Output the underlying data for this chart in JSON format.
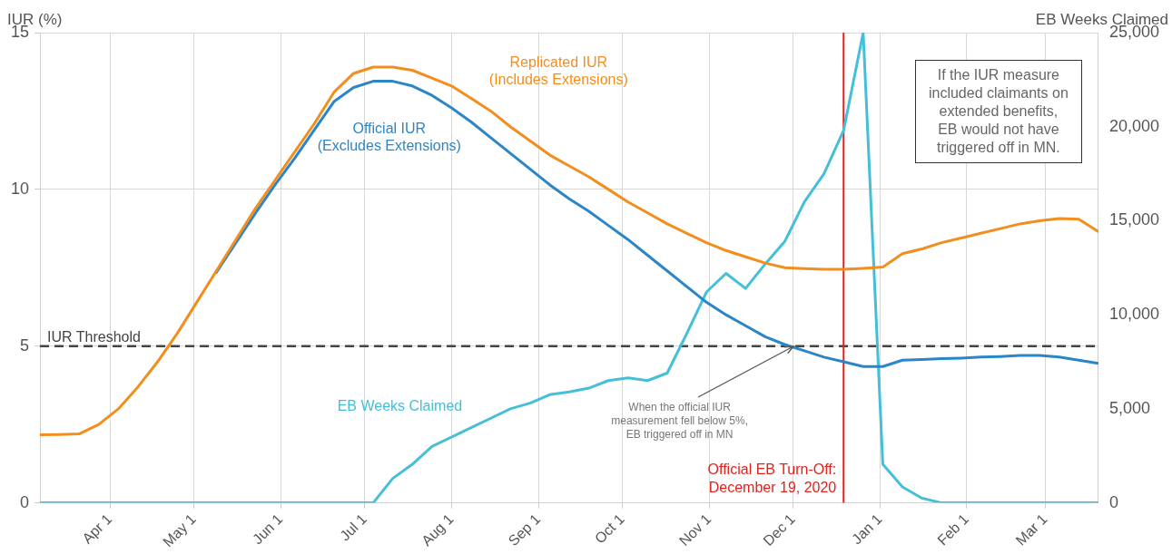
{
  "chart_data": {
    "type": "line",
    "x": [
      "2020-03-07",
      "2020-03-14",
      "2020-03-21",
      "2020-03-28",
      "2020-04-04",
      "2020-04-11",
      "2020-04-18",
      "2020-04-25",
      "2020-05-02",
      "2020-05-09",
      "2020-05-16",
      "2020-05-23",
      "2020-05-30",
      "2020-06-06",
      "2020-06-13",
      "2020-06-20",
      "2020-06-27",
      "2020-07-04",
      "2020-07-11",
      "2020-07-18",
      "2020-07-25",
      "2020-08-01",
      "2020-08-08",
      "2020-08-15",
      "2020-08-22",
      "2020-08-29",
      "2020-09-05",
      "2020-09-12",
      "2020-09-19",
      "2020-09-26",
      "2020-10-03",
      "2020-10-10",
      "2020-10-17",
      "2020-10-24",
      "2020-10-31",
      "2020-11-07",
      "2020-11-14",
      "2020-11-21",
      "2020-11-28",
      "2020-12-05",
      "2020-12-12",
      "2020-12-19",
      "2020-12-26",
      "2021-01-02",
      "2021-01-09",
      "2021-01-16",
      "2021-01-23",
      "2021-01-30",
      "2021-02-06",
      "2021-02-13",
      "2021-02-20",
      "2021-02-27",
      "2021-03-06",
      "2021-03-13",
      "2021-03-20"
    ],
    "series": [
      {
        "name": "Replicated IUR\n(Includes Extensions)",
        "color": "#f28e1e",
        "axis": "y",
        "values": [
          2.17,
          2.18,
          2.2,
          2.5,
          3.0,
          3.7,
          4.5,
          5.4,
          6.4,
          7.4,
          8.4,
          9.4,
          10.3,
          11.2,
          12.1,
          13.1,
          13.7,
          13.9,
          13.9,
          13.8,
          13.55,
          13.3,
          12.9,
          12.5,
          12.0,
          11.55,
          11.1,
          10.75,
          10.4,
          10.0,
          9.6,
          9.25,
          8.9,
          8.6,
          8.3,
          8.05,
          7.85,
          7.65,
          7.5,
          7.47,
          7.45,
          7.45,
          7.48,
          7.52,
          7.95,
          8.1,
          8.3,
          8.45,
          8.6,
          8.75,
          8.9,
          9.0,
          9.07,
          9.05,
          8.65
        ]
      },
      {
        "name": "Official IUR\n(Excludes Extensions)",
        "color": "#2a86c8",
        "axis": "y",
        "values": [
          null,
          null,
          null,
          null,
          null,
          null,
          null,
          null,
          null,
          7.35,
          8.3,
          9.25,
          10.15,
          11.0,
          11.9,
          12.8,
          13.25,
          13.45,
          13.45,
          13.3,
          13.0,
          12.6,
          12.15,
          11.65,
          11.15,
          10.65,
          10.15,
          9.7,
          9.3,
          8.85,
          8.4,
          7.9,
          7.4,
          6.9,
          6.4,
          6.0,
          5.65,
          5.3,
          5.05,
          4.85,
          4.65,
          4.5,
          4.35,
          4.35,
          4.55,
          4.57,
          4.6,
          4.62,
          4.65,
          4.67,
          4.7,
          4.7,
          4.65,
          4.55,
          4.45
        ]
      },
      {
        "name": "EB Weeks Claimed",
        "color": "#45bfd8",
        "axis": "y2",
        "values": [
          0,
          0,
          0,
          0,
          0,
          0,
          0,
          0,
          0,
          0,
          0,
          0,
          0,
          0,
          0,
          0,
          0,
          0,
          1300,
          2050,
          3000,
          3500,
          4000,
          4500,
          5000,
          5300,
          5750,
          5900,
          6100,
          6500,
          6650,
          6500,
          6900,
          9000,
          11200,
          12200,
          11400,
          12700,
          13900,
          16000,
          17500,
          19800,
          25000,
          2050,
          850,
          250,
          0,
          0,
          0,
          0,
          0,
          0,
          0,
          0,
          0
        ]
      }
    ],
    "ylabel": "IUR (%)",
    "y2label": "EB Weeks Claimed",
    "xlim": [
      "2020-03-07",
      "2021-03-20"
    ],
    "xticks": [
      {
        "value": "2020-04-01",
        "label": "Apr 1"
      },
      {
        "value": "2020-05-01",
        "label": "May 1"
      },
      {
        "value": "2020-06-01",
        "label": "Jun 1"
      },
      {
        "value": "2020-07-01",
        "label": "Jul 1"
      },
      {
        "value": "2020-08-01",
        "label": "Aug 1"
      },
      {
        "value": "2020-09-01",
        "label": "Sep 1"
      },
      {
        "value": "2020-10-01",
        "label": "Oct 1"
      },
      {
        "value": "2020-11-01",
        "label": "Nov 1"
      },
      {
        "value": "2020-12-01",
        "label": "Dec 1"
      },
      {
        "value": "2021-01-01",
        "label": "Jan 1"
      },
      {
        "value": "2021-02-01",
        "label": "Feb 1"
      },
      {
        "value": "2021-03-01",
        "label": "Mar 1"
      }
    ],
    "ylim": [
      0,
      15
    ],
    "yticks": [
      0,
      5,
      10,
      15
    ],
    "y2lim": [
      0,
      25000
    ],
    "y2ticks": [
      0,
      {
        "value": 5000,
        "label": "5,000"
      },
      {
        "value": 10000,
        "label": "10,000"
      },
      {
        "value": 15000,
        "label": "15,000"
      },
      {
        "value": 20000,
        "label": "20,000"
      },
      {
        "value": 25000,
        "label": "25,000"
      }
    ],
    "grid": true,
    "legend": false,
    "marker": "none",
    "line_style": "solid",
    "ref_lines": [
      {
        "axis": "y",
        "value": 5,
        "label": "IUR Threshold",
        "color": "#444444",
        "line_style": "dashed"
      },
      {
        "axis": "x",
        "value": "2020-12-19",
        "label": "Official EB Turn-Off:\nDecember 19, 2020",
        "color": "#e0231c",
        "line_style": "solid"
      }
    ],
    "annotations": [
      {
        "text": "When the official IUR\nmeasurement fell below 5%,\nEB triggered off in MN",
        "x": "2020-12-01",
        "y": 5
      },
      "If the IUR measure\nincluded claimants on\nextended benefits,\nEB would not have\ntriggered off in MN."
    ]
  }
}
